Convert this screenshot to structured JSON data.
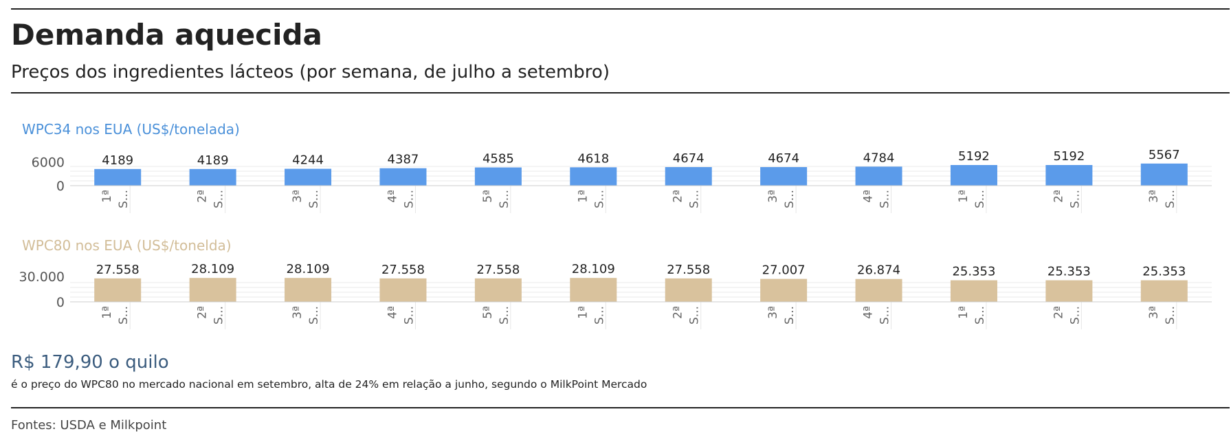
{
  "header": {
    "title": "Demanda aquecida",
    "subtitle": "Preços dos ingredientes lácteos (por semana, de julho a setembro)"
  },
  "chart_data": [
    {
      "type": "bar",
      "title": "WPC34 nos EUA (US$/tonelada)",
      "title_color": "#4a90d9",
      "bar_color": "#5b9bea",
      "categories": [
        "1ª S...",
        "2ª S...",
        "3ª S...",
        "4ª S...",
        "5ª S...",
        "1ª S...",
        "2ª S...",
        "3ª S...",
        "4ª S...",
        "1ª S...",
        "2ª S...",
        "3ª S..."
      ],
      "values": [
        4189,
        4189,
        4244,
        4387,
        4585,
        4618,
        4674,
        4674,
        4784,
        5192,
        5192,
        5567
      ],
      "value_labels": [
        "4189",
        "4189",
        "4244",
        "4387",
        "4585",
        "4618",
        "4674",
        "4674",
        "4784",
        "5192",
        "5192",
        "5567"
      ],
      "y_ticks": [
        0,
        6000
      ],
      "y_tick_labels": [
        "0",
        "6000"
      ],
      "ylim": [
        0,
        9000
      ],
      "grid": true
    },
    {
      "type": "bar",
      "title": "WPC80 nos EUA (US$/tonelda)",
      "title_color": "#d2bd98",
      "bar_color": "#d9c29d",
      "categories": [
        "1ª S...",
        "2ª S...",
        "3ª S...",
        "4ª S...",
        "5ª S...",
        "1ª S...",
        "2ª S...",
        "3ª S...",
        "4ª S...",
        "1ª S...",
        "2ª S...",
        "3ª S..."
      ],
      "values": [
        27558,
        28109,
        28109,
        27558,
        27558,
        28109,
        27558,
        27007,
        26874,
        25353,
        25353,
        25353
      ],
      "value_labels": [
        "27.558",
        "28.109",
        "28.109",
        "27.558",
        "27.558",
        "28.109",
        "27.558",
        "27.007",
        "26.874",
        "25.353",
        "25.353",
        "25.353"
      ],
      "y_ticks": [
        0,
        30000
      ],
      "y_tick_labels": [
        "0",
        "30.000"
      ],
      "ylim": [
        0,
        42000
      ],
      "grid": true
    }
  ],
  "highlight": {
    "value": "R$ 179,90 o quilo",
    "note": "é o preço do WPC80 no mercado nacional em setembro, alta de 24% em relação a junho, segundo o MilkPoint Mercado"
  },
  "footer": {
    "source": "Fontes: USDA e Milkpoint"
  }
}
